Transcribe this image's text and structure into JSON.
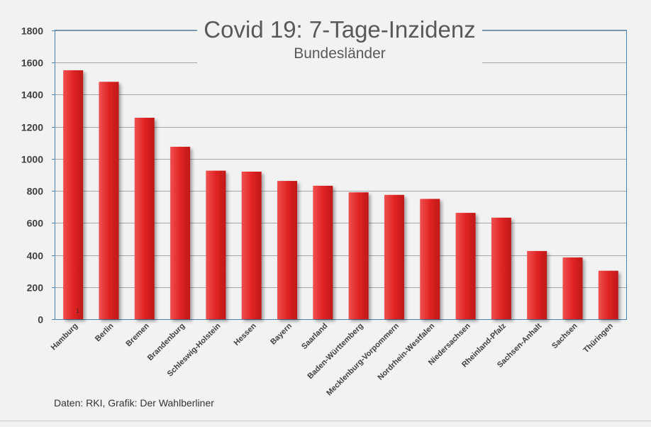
{
  "chart_data": {
    "type": "bar",
    "title": "Covid 19: 7-Tage-Inzidenz",
    "subtitle": "Bundesländer",
    "categories": [
      "Hamburg",
      "Berlin",
      "Bremen",
      "Brandenburg",
      "Schleswig-Holstein",
      "Hessen",
      "Bayern",
      "Saarland",
      "Baden-Württemberg",
      "Mecklenburg-Vorpommern",
      "Nordrhein-Westfalen",
      "Niedersachsen",
      "Rheinland-Pfalz",
      "Sachsen-Anhalt",
      "Sachsen",
      "Thüringen"
    ],
    "values": [
      1552,
      1480,
      1256,
      1075,
      926,
      920,
      862,
      832,
      791,
      775,
      750,
      663,
      633,
      425,
      385,
      302
    ],
    "ylim": [
      0,
      1800
    ],
    "yticks": [
      0,
      200,
      400,
      600,
      800,
      1000,
      1200,
      1400,
      1600,
      1800
    ],
    "grid": true,
    "bar_color": "#e02424",
    "annotation": "1"
  },
  "source_text": "Daten: RKI, Grafik: Der Wahlberliner"
}
